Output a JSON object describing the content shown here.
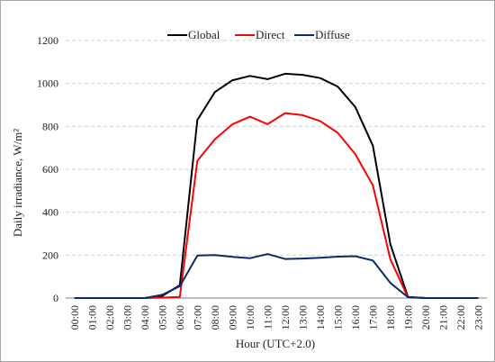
{
  "chart_data": {
    "type": "line",
    "title": "",
    "xlabel": "Hour (UTC+2.0)",
    "ylabel": "Daily irradiance, W/m²",
    "ylim": [
      0,
      1200
    ],
    "yticks": [
      0,
      200,
      400,
      600,
      800,
      1000,
      1200
    ],
    "grid": "horizontal dashed",
    "legend_position": "top-center",
    "categories": [
      "00:00",
      "01:00",
      "02:00",
      "03:00",
      "04:00",
      "05:00",
      "06:00",
      "07:00",
      "08:00",
      "09:00",
      "10:00",
      "11:00",
      "12:00",
      "13:00",
      "14:00",
      "15:00",
      "16:00",
      "17:00",
      "18:00",
      "19:00",
      "20:00",
      "21:00",
      "22:00",
      "23:00"
    ],
    "series": [
      {
        "name": "Global",
        "color": "#000000",
        "values": [
          0,
          0,
          0,
          0,
          0,
          10,
          60,
          830,
          960,
          1015,
          1035,
          1020,
          1045,
          1040,
          1025,
          985,
          890,
          710,
          250,
          5,
          0,
          0,
          0,
          0
        ]
      },
      {
        "name": "Direct",
        "color": "#ff0000",
        "values": [
          0,
          0,
          0,
          0,
          0,
          2,
          5,
          640,
          740,
          810,
          845,
          810,
          862,
          852,
          825,
          770,
          670,
          525,
          180,
          3,
          0,
          0,
          0,
          0
        ]
      },
      {
        "name": "Diffuse",
        "color": "#0b2a6b",
        "values": [
          0,
          0,
          0,
          0,
          0,
          15,
          55,
          198,
          200,
          192,
          186,
          205,
          182,
          184,
          188,
          193,
          195,
          175,
          70,
          4,
          0,
          0,
          0,
          0
        ]
      }
    ]
  }
}
